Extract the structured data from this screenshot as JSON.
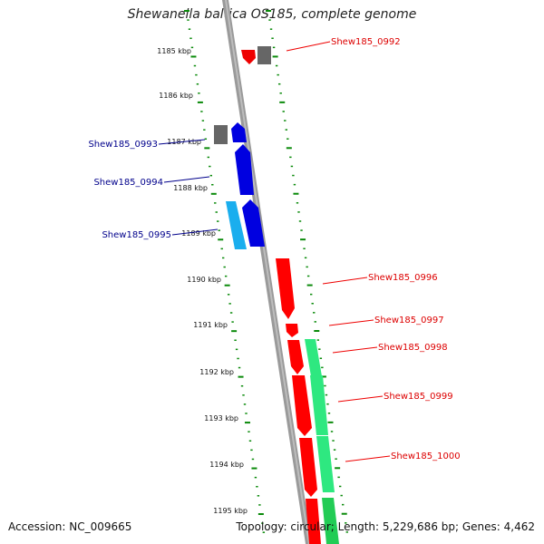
{
  "title": "Shewanella baltica OS185, complete genome",
  "accession": "Accession: NC_009665",
  "summary": "Topology: circular; Length: 5,229,686 bp; Genes: 4,462",
  "colors": {
    "forward_gene": "#ff0000",
    "reverse_gene": "#0000e6",
    "reverse_gene_light": "#1ab2ff",
    "rna_gene": "#2ee880",
    "other": "#666666",
    "tick": "#0a8a0a",
    "backbone": "#999999"
  },
  "scale_labels": [
    "1185 kbp",
    "1186 kbp",
    "1187 kbp",
    "1188 kbp",
    "1189 kbp",
    "1190 kbp",
    "1191 kbp",
    "1192 kbp",
    "1193 kbp",
    "1194 kbp",
    "1195 kbp"
  ],
  "gene_labels": [
    {
      "text": "Shew185_0992",
      "strand": "forward"
    },
    {
      "text": "Shew185_0993",
      "strand": "reverse"
    },
    {
      "text": "Shew185_0994",
      "strand": "reverse"
    },
    {
      "text": "Shew185_0995",
      "strand": "reverse"
    },
    {
      "text": "Shew185_0996",
      "strand": "forward"
    },
    {
      "text": "Shew185_0997",
      "strand": "forward"
    },
    {
      "text": "Shew185_0998",
      "strand": "forward"
    },
    {
      "text": "Shew185_0999",
      "strand": "forward"
    },
    {
      "text": "Shew185_1000",
      "strand": "forward"
    }
  ]
}
